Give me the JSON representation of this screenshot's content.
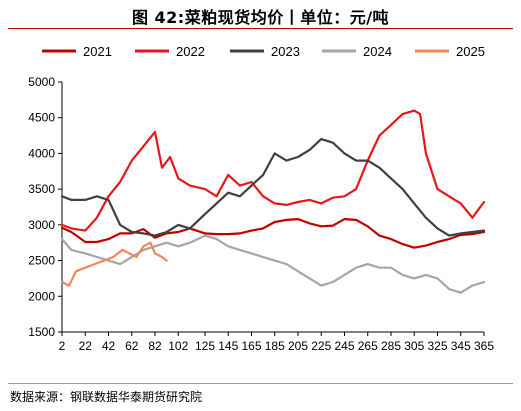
{
  "header": {
    "title": "图 42:菜粕现货均价丨单位：元/吨"
  },
  "footer": {
    "source": "数据来源：钢联数据华泰期货研究院"
  },
  "colors": {
    "title_rule": "#c00000",
    "axis": "#000000"
  },
  "chart_data": {
    "type": "line",
    "title": "",
    "xlabel": "",
    "ylabel": "",
    "xlim": [
      2,
      365
    ],
    "ylim": [
      1500,
      5000
    ],
    "x_ticks": [
      2,
      22,
      42,
      62,
      82,
      102,
      125,
      145,
      165,
      185,
      205,
      225,
      245,
      265,
      285,
      305,
      325,
      345,
      365
    ],
    "y_ticks": [
      1500,
      2000,
      2500,
      3000,
      3500,
      4000,
      4500,
      5000
    ],
    "grid": false,
    "legend_position": "top",
    "series": [
      {
        "name": "2021",
        "color": "#c00000",
        "points": [
          [
            2,
            2960
          ],
          [
            10,
            2900
          ],
          [
            22,
            2760
          ],
          [
            32,
            2760
          ],
          [
            42,
            2800
          ],
          [
            52,
            2880
          ],
          [
            62,
            2880
          ],
          [
            72,
            2940
          ],
          [
            82,
            2820
          ],
          [
            92,
            2880
          ],
          [
            102,
            2900
          ],
          [
            112,
            2950
          ],
          [
            125,
            2880
          ],
          [
            135,
            2870
          ],
          [
            145,
            2870
          ],
          [
            155,
            2880
          ],
          [
            165,
            2920
          ],
          [
            175,
            2950
          ],
          [
            185,
            3040
          ],
          [
            195,
            3070
          ],
          [
            205,
            3080
          ],
          [
            215,
            3020
          ],
          [
            225,
            2980
          ],
          [
            235,
            2990
          ],
          [
            245,
            3080
          ],
          [
            255,
            3070
          ],
          [
            265,
            2980
          ],
          [
            275,
            2850
          ],
          [
            285,
            2800
          ],
          [
            295,
            2730
          ],
          [
            305,
            2680
          ],
          [
            315,
            2710
          ],
          [
            325,
            2760
          ],
          [
            335,
            2800
          ],
          [
            345,
            2860
          ],
          [
            355,
            2870
          ],
          [
            365,
            2900
          ]
        ]
      },
      {
        "name": "2022",
        "color": "#e8161b",
        "points": [
          [
            2,
            3000
          ],
          [
            10,
            2950
          ],
          [
            22,
            2920
          ],
          [
            32,
            3100
          ],
          [
            42,
            3400
          ],
          [
            52,
            3600
          ],
          [
            62,
            3900
          ],
          [
            72,
            4100
          ],
          [
            82,
            4300
          ],
          [
            88,
            3800
          ],
          [
            95,
            3950
          ],
          [
            102,
            3650
          ],
          [
            112,
            3550
          ],
          [
            125,
            3500
          ],
          [
            135,
            3400
          ],
          [
            145,
            3700
          ],
          [
            155,
            3550
          ],
          [
            165,
            3600
          ],
          [
            175,
            3400
          ],
          [
            185,
            3300
          ],
          [
            195,
            3280
          ],
          [
            205,
            3320
          ],
          [
            215,
            3350
          ],
          [
            225,
            3300
          ],
          [
            235,
            3380
          ],
          [
            245,
            3400
          ],
          [
            255,
            3500
          ],
          [
            265,
            3900
          ],
          [
            275,
            4250
          ],
          [
            285,
            4400
          ],
          [
            295,
            4550
          ],
          [
            305,
            4600
          ],
          [
            310,
            4550
          ],
          [
            315,
            4000
          ],
          [
            325,
            3500
          ],
          [
            335,
            3400
          ],
          [
            345,
            3300
          ],
          [
            355,
            3100
          ],
          [
            365,
            3320
          ]
        ]
      },
      {
        "name": "2023",
        "color": "#404040",
        "points": [
          [
            2,
            3400
          ],
          [
            10,
            3350
          ],
          [
            22,
            3350
          ],
          [
            32,
            3400
          ],
          [
            42,
            3350
          ],
          [
            52,
            3000
          ],
          [
            62,
            2900
          ],
          [
            72,
            2880
          ],
          [
            82,
            2850
          ],
          [
            92,
            2900
          ],
          [
            102,
            3000
          ],
          [
            112,
            2950
          ],
          [
            125,
            3150
          ],
          [
            135,
            3300
          ],
          [
            145,
            3450
          ],
          [
            155,
            3400
          ],
          [
            165,
            3550
          ],
          [
            175,
            3700
          ],
          [
            185,
            4000
          ],
          [
            195,
            3900
          ],
          [
            205,
            3950
          ],
          [
            215,
            4050
          ],
          [
            225,
            4200
          ],
          [
            235,
            4150
          ],
          [
            245,
            4000
          ],
          [
            255,
            3900
          ],
          [
            265,
            3900
          ],
          [
            275,
            3800
          ],
          [
            285,
            3650
          ],
          [
            295,
            3500
          ],
          [
            305,
            3300
          ],
          [
            315,
            3100
          ],
          [
            325,
            2950
          ],
          [
            335,
            2850
          ],
          [
            345,
            2880
          ],
          [
            355,
            2900
          ],
          [
            365,
            2920
          ]
        ]
      },
      {
        "name": "2024",
        "color": "#a6a6a6",
        "points": [
          [
            2,
            2800
          ],
          [
            10,
            2650
          ],
          [
            22,
            2600
          ],
          [
            32,
            2550
          ],
          [
            42,
            2500
          ],
          [
            52,
            2450
          ],
          [
            62,
            2550
          ],
          [
            72,
            2650
          ],
          [
            82,
            2700
          ],
          [
            92,
            2750
          ],
          [
            102,
            2700
          ],
          [
            112,
            2750
          ],
          [
            125,
            2850
          ],
          [
            135,
            2800
          ],
          [
            145,
            2700
          ],
          [
            155,
            2650
          ],
          [
            165,
            2600
          ],
          [
            175,
            2550
          ],
          [
            185,
            2500
          ],
          [
            195,
            2450
          ],
          [
            205,
            2350
          ],
          [
            215,
            2250
          ],
          [
            225,
            2150
          ],
          [
            235,
            2200
          ],
          [
            245,
            2300
          ],
          [
            255,
            2400
          ],
          [
            265,
            2450
          ],
          [
            275,
            2400
          ],
          [
            285,
            2400
          ],
          [
            295,
            2300
          ],
          [
            305,
            2250
          ],
          [
            315,
            2300
          ],
          [
            325,
            2250
          ],
          [
            335,
            2100
          ],
          [
            345,
            2050
          ],
          [
            355,
            2150
          ],
          [
            365,
            2200
          ]
        ]
      },
      {
        "name": "2025",
        "color": "#f4855a",
        "points": [
          [
            2,
            2200
          ],
          [
            8,
            2150
          ],
          [
            14,
            2350
          ],
          [
            22,
            2400
          ],
          [
            30,
            2450
          ],
          [
            38,
            2500
          ],
          [
            46,
            2550
          ],
          [
            54,
            2650
          ],
          [
            60,
            2600
          ],
          [
            66,
            2550
          ],
          [
            72,
            2700
          ],
          [
            78,
            2750
          ],
          [
            82,
            2600
          ],
          [
            88,
            2550
          ],
          [
            92,
            2500
          ]
        ]
      }
    ]
  }
}
